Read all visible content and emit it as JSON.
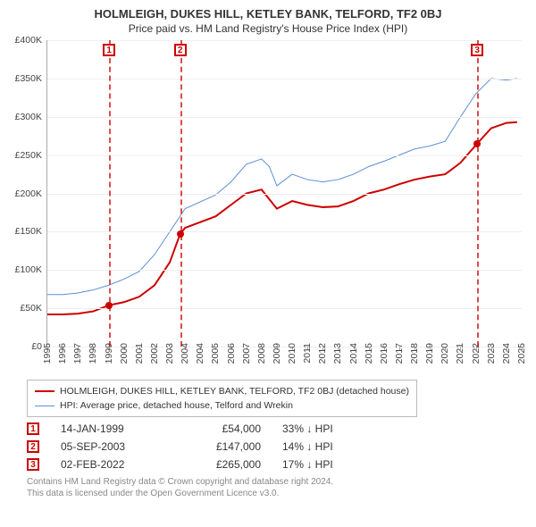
{
  "title": "HOLMLEIGH, DUKES HILL, KETLEY BANK, TELFORD, TF2 0BJ",
  "subtitle": "Price paid vs. HM Land Registry's House Price Index (HPI)",
  "chart": {
    "type": "line",
    "xlim": [
      1995,
      2025
    ],
    "ylim": [
      0,
      400000
    ],
    "yticks": [
      0,
      50000,
      100000,
      150000,
      200000,
      250000,
      300000,
      350000,
      400000
    ],
    "ytick_labels": [
      "£0",
      "£50K",
      "£100K",
      "£150K",
      "£200K",
      "£250K",
      "£300K",
      "£350K",
      "£400K"
    ],
    "xticks": [
      1995,
      1996,
      1997,
      1998,
      1999,
      2000,
      2001,
      2002,
      2003,
      2004,
      2004,
      2005,
      2006,
      2007,
      2008,
      2009,
      2010,
      2011,
      2012,
      2013,
      2014,
      2015,
      2016,
      2017,
      2018,
      2019,
      2020,
      2021,
      2022,
      2023,
      2024,
      2025
    ],
    "xtick_labels": [
      "1995",
      "1996",
      "1997",
      "1998",
      "1999",
      "2000",
      "2001",
      "2002",
      "2003",
      "2004",
      "2004",
      "2005",
      "2006",
      "2007",
      "2008",
      "2009",
      "2010",
      "2011",
      "2012",
      "2013",
      "2014",
      "2015",
      "2016",
      "2017",
      "2018",
      "2019",
      "2020",
      "2021",
      "2022",
      "2023",
      "2024",
      "2025"
    ],
    "grid_color": "#eeeeee",
    "axis_color": "#aaaaaa",
    "background_color": "#ffffff",
    "title_fontsize": 13,
    "subtitle_fontsize": 12,
    "tick_fontsize": 10.5,
    "series": [
      {
        "name": "HOLMLEIGH, DUKES HILL, KETLEY BANK, TELFORD, TF2 0BJ (detached house)",
        "color": "#cc0000",
        "line_width": 2,
        "data": [
          [
            1995.0,
            42000
          ],
          [
            1996.0,
            42000
          ],
          [
            1997.0,
            43000
          ],
          [
            1998.0,
            46000
          ],
          [
            1999.04,
            54000
          ],
          [
            2000.0,
            58000
          ],
          [
            2001.0,
            65000
          ],
          [
            2002.0,
            80000
          ],
          [
            2003.0,
            110000
          ],
          [
            2003.68,
            147000
          ],
          [
            2004.0,
            155000
          ],
          [
            2005.0,
            170000
          ],
          [
            2006.0,
            185000
          ],
          [
            2007.0,
            200000
          ],
          [
            2008.0,
            205000
          ],
          [
            2009.0,
            180000
          ],
          [
            2010.0,
            190000
          ],
          [
            2011.0,
            185000
          ],
          [
            2012.0,
            182000
          ],
          [
            2013.0,
            183000
          ],
          [
            2014.0,
            190000
          ],
          [
            2015.0,
            200000
          ],
          [
            2016.0,
            205000
          ],
          [
            2017.0,
            212000
          ],
          [
            2018.0,
            218000
          ],
          [
            2019.0,
            222000
          ],
          [
            2020.0,
            225000
          ],
          [
            2021.0,
            240000
          ],
          [
            2022.09,
            265000
          ],
          [
            2023.0,
            285000
          ],
          [
            2024.0,
            292000
          ],
          [
            2024.7,
            293000
          ]
        ]
      },
      {
        "name": "HPI: Average price, detached house, Telford and Wrekin",
        "color": "#5b8fd6",
        "line_width": 1,
        "data": [
          [
            1995.0,
            68000
          ],
          [
            1996.0,
            68000
          ],
          [
            1997.0,
            70000
          ],
          [
            1998.0,
            74000
          ],
          [
            1999.0,
            80000
          ],
          [
            2000.0,
            88000
          ],
          [
            2001.0,
            98000
          ],
          [
            2002.0,
            120000
          ],
          [
            2003.0,
            150000
          ],
          [
            2004.0,
            180000
          ],
          [
            2005.0,
            198000
          ],
          [
            2006.0,
            215000
          ],
          [
            2007.0,
            238000
          ],
          [
            2008.0,
            245000
          ],
          [
            2008.5,
            235000
          ],
          [
            2009.0,
            210000
          ],
          [
            2010.0,
            225000
          ],
          [
            2011.0,
            218000
          ],
          [
            2012.0,
            215000
          ],
          [
            2013.0,
            218000
          ],
          [
            2014.0,
            225000
          ],
          [
            2015.0,
            235000
          ],
          [
            2016.0,
            242000
          ],
          [
            2017.0,
            250000
          ],
          [
            2018.0,
            258000
          ],
          [
            2019.0,
            262000
          ],
          [
            2020.0,
            268000
          ],
          [
            2021.0,
            300000
          ],
          [
            2022.0,
            330000
          ],
          [
            2023.0,
            350000
          ],
          [
            2024.0,
            348000
          ],
          [
            2024.7,
            350000
          ]
        ]
      }
    ],
    "event_markers": [
      {
        "id": "1",
        "x": 1999.04,
        "price": 54000,
        "color": "#cc0000"
      },
      {
        "id": "2",
        "x": 2003.68,
        "price": 147000,
        "color": "#cc0000"
      },
      {
        "id": "3",
        "x": 2022.09,
        "price": 265000,
        "color": "#cc0000"
      }
    ]
  },
  "legend": {
    "border_color": "#bbbbbb",
    "items": [
      {
        "color": "#cc0000",
        "width": 2,
        "label": "HOLMLEIGH, DUKES HILL, KETLEY BANK, TELFORD, TF2 0BJ (detached house)"
      },
      {
        "color": "#5b8fd6",
        "width": 1,
        "label": "HPI: Average price, detached house, Telford and Wrekin"
      }
    ]
  },
  "events_table": [
    {
      "id": "1",
      "date": "14-JAN-1999",
      "price": "£54,000",
      "diff": "33% ↓ HPI"
    },
    {
      "id": "2",
      "date": "05-SEP-2003",
      "price": "£147,000",
      "diff": "14% ↓ HPI"
    },
    {
      "id": "3",
      "date": "02-FEB-2022",
      "price": "£265,000",
      "diff": "17% ↓ HPI"
    }
  ],
  "footer_line1": "Contains HM Land Registry data © Crown copyright and database right 2024.",
  "footer_line2": "This data is licensed under the Open Government Licence v3.0."
}
